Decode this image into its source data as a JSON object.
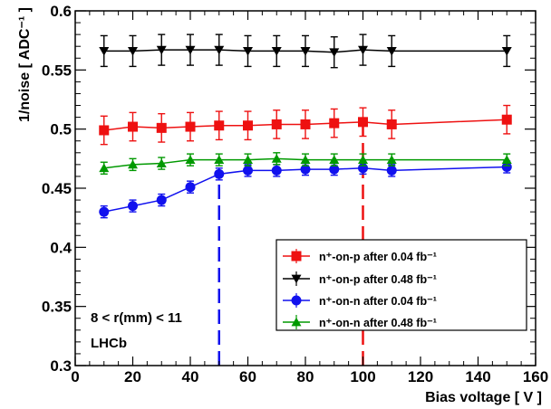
{
  "chart_data": {
    "type": "line",
    "xlabel": "Bias voltage  [ V ]",
    "ylabel": "1/noise [ ADC⁻¹ ]",
    "xlim": [
      0,
      160
    ],
    "ylim": [
      0.3,
      0.6
    ],
    "xticks": [
      0,
      20,
      40,
      60,
      80,
      100,
      120,
      140,
      160
    ],
    "yticks": [
      0.3,
      0.35,
      0.4,
      0.45,
      0.5,
      0.55,
      0.6
    ],
    "xtick_labels": [
      "0",
      "20",
      "40",
      "60",
      "80",
      "100",
      "120",
      "140",
      "160"
    ],
    "ytick_labels": [
      "0.3",
      "0.35",
      "0.4",
      "0.45",
      "0.5",
      "0.55",
      "0.6"
    ],
    "grid": false,
    "legend_position": "bottom-right",
    "series": [
      {
        "name": "n⁺-on-p after 0.04 fb⁻¹",
        "color": "#ee1111",
        "marker": "square",
        "x": [
          10,
          20,
          30,
          40,
          50,
          60,
          70,
          80,
          90,
          100,
          110,
          150
        ],
        "y": [
          0.499,
          0.502,
          0.501,
          0.502,
          0.503,
          0.503,
          0.504,
          0.504,
          0.505,
          0.506,
          0.504,
          0.508
        ],
        "err": [
          0.012,
          0.012,
          0.012,
          0.012,
          0.012,
          0.012,
          0.012,
          0.012,
          0.012,
          0.012,
          0.012,
          0.012
        ]
      },
      {
        "name": "n⁺-on-p after 0.48 fb⁻¹",
        "color": "#000000",
        "marker": "triangle-down",
        "x": [
          10,
          20,
          30,
          40,
          50,
          60,
          70,
          80,
          90,
          100,
          110,
          150
        ],
        "y": [
          0.566,
          0.566,
          0.567,
          0.567,
          0.567,
          0.566,
          0.566,
          0.566,
          0.565,
          0.567,
          0.566,
          0.566
        ],
        "err": [
          0.013,
          0.013,
          0.013,
          0.013,
          0.013,
          0.013,
          0.013,
          0.013,
          0.013,
          0.013,
          0.013,
          0.013
        ]
      },
      {
        "name": "n⁺-on-n after 0.04 fb⁻¹",
        "color": "#1111ee",
        "marker": "circle",
        "x": [
          10,
          20,
          30,
          40,
          50,
          60,
          70,
          80,
          90,
          100,
          110,
          150
        ],
        "y": [
          0.43,
          0.435,
          0.44,
          0.451,
          0.462,
          0.465,
          0.465,
          0.466,
          0.466,
          0.467,
          0.465,
          0.468
        ],
        "err": [
          0.005,
          0.005,
          0.005,
          0.005,
          0.005,
          0.005,
          0.005,
          0.005,
          0.005,
          0.005,
          0.005,
          0.005
        ]
      },
      {
        "name": "n⁺-on-n after 0.48 fb⁻¹",
        "color": "#009900",
        "marker": "triangle-up",
        "x": [
          10,
          20,
          30,
          40,
          50,
          60,
          70,
          80,
          90,
          100,
          110,
          150
        ],
        "y": [
          0.467,
          0.47,
          0.471,
          0.474,
          0.474,
          0.474,
          0.475,
          0.474,
          0.474,
          0.474,
          0.474,
          0.474
        ],
        "err": [
          0.005,
          0.005,
          0.005,
          0.005,
          0.005,
          0.005,
          0.005,
          0.005,
          0.005,
          0.005,
          0.005,
          0.005
        ]
      }
    ],
    "reference_lines": [
      {
        "x": 50,
        "y_top": 0.462,
        "color": "#1111ee",
        "style": "dashed"
      },
      {
        "x": 100,
        "y_top": 0.506,
        "color": "#ee1111",
        "style": "dashed"
      }
    ],
    "annotations": [
      "8 < r(mm) < 11",
      "LHCb"
    ]
  }
}
